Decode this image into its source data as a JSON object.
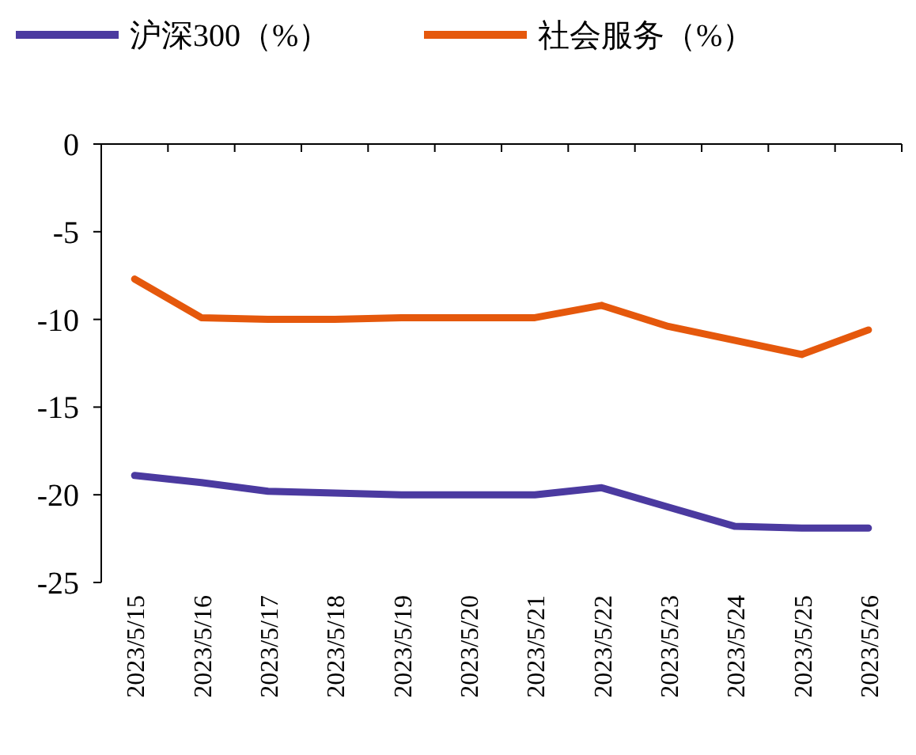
{
  "chart_data": {
    "type": "line",
    "categories": [
      "2023/5/15",
      "2023/5/16",
      "2023/5/17",
      "2023/5/18",
      "2023/5/19",
      "2023/5/20",
      "2023/5/21",
      "2023/5/22",
      "2023/5/23",
      "2023/5/24",
      "2023/5/25",
      "2023/5/26"
    ],
    "series": [
      {
        "name": "沪深300（%）",
        "color": "#4b3aa0",
        "values": [
          -18.9,
          -19.3,
          -19.8,
          -19.9,
          -20.0,
          -20.0,
          -20.0,
          -19.6,
          -20.7,
          -21.8,
          -21.9,
          -21.9
        ]
      },
      {
        "name": "社会服务（%）",
        "color": "#e5580c",
        "values": [
          -7.7,
          -9.9,
          -10.0,
          -10.0,
          -9.9,
          -9.9,
          -9.9,
          -9.2,
          -10.4,
          -11.2,
          -12.0,
          -10.6
        ]
      }
    ],
    "ylim": [
      -25,
      0
    ],
    "yticks": [
      -25,
      -20,
      -15,
      -10,
      -5,
      0
    ],
    "grid": false,
    "legend": "top",
    "line_style": "solid",
    "marker": "none"
  }
}
